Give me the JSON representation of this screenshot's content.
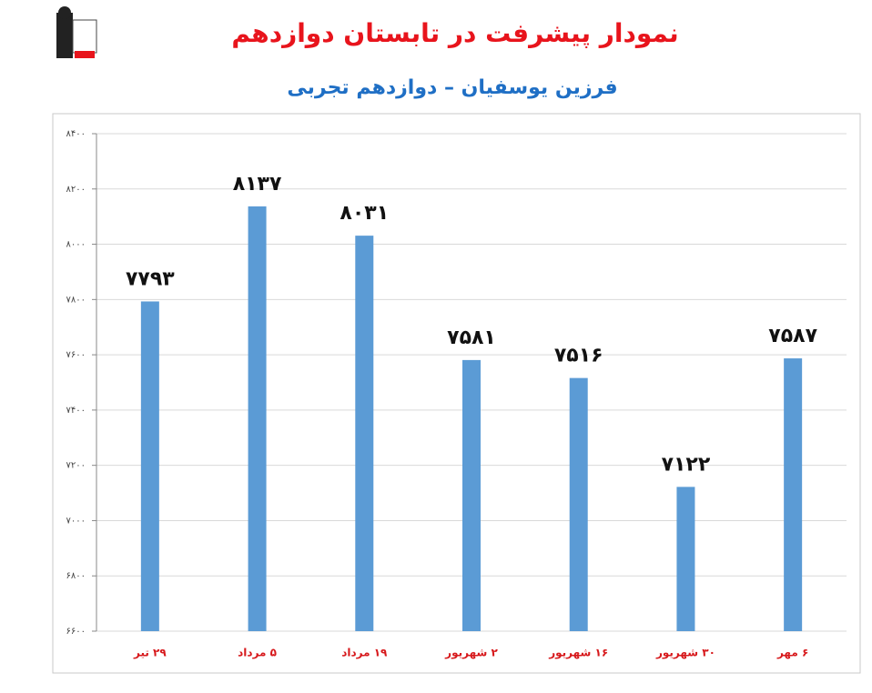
{
  "chart_data": {
    "type": "bar",
    "title": "نمودار پیشرفت در تابستان دوازدهم",
    "subtitle": "فرزین یوسفیان – دوازدهم تجربی",
    "categories": [
      "۲۹ تیر",
      "۵ مرداد",
      "۱۹ مرداد",
      "۲ شهریور",
      "۱۶ شهریور",
      "۳۰ شهریور",
      "۶ مهر"
    ],
    "values": [
      7793,
      8137,
      8031,
      7581,
      7516,
      7122,
      7587
    ],
    "value_labels": [
      "۷۷۹۳",
      "۸۱۳۷",
      "۸۰۳۱",
      "۷۵۸۱",
      "۷۵۱۶",
      "۷۱۲۲",
      "۷۵۸۷"
    ],
    "color": "#5b9bd5",
    "ylim": [
      6600,
      8400
    ],
    "yticks": [
      {
        "value": 6600,
        "label": "۶۶۰۰"
      },
      {
        "value": 6800,
        "label": "۶۸۰۰"
      },
      {
        "value": 7000,
        "label": "۷۰۰۰"
      },
      {
        "value": 7200,
        "label": "۷۲۰۰"
      },
      {
        "value": 7400,
        "label": "۷۴۰۰"
      },
      {
        "value": 7600,
        "label": "۷۶۰۰"
      },
      {
        "value": 7800,
        "label": "۷۸۰۰"
      },
      {
        "value": 8000,
        "label": "۸۰۰۰"
      },
      {
        "value": 8200,
        "label": "۸۲۰۰"
      },
      {
        "value": 8400,
        "label": "۸۴۰۰"
      }
    ],
    "grid": true
  }
}
